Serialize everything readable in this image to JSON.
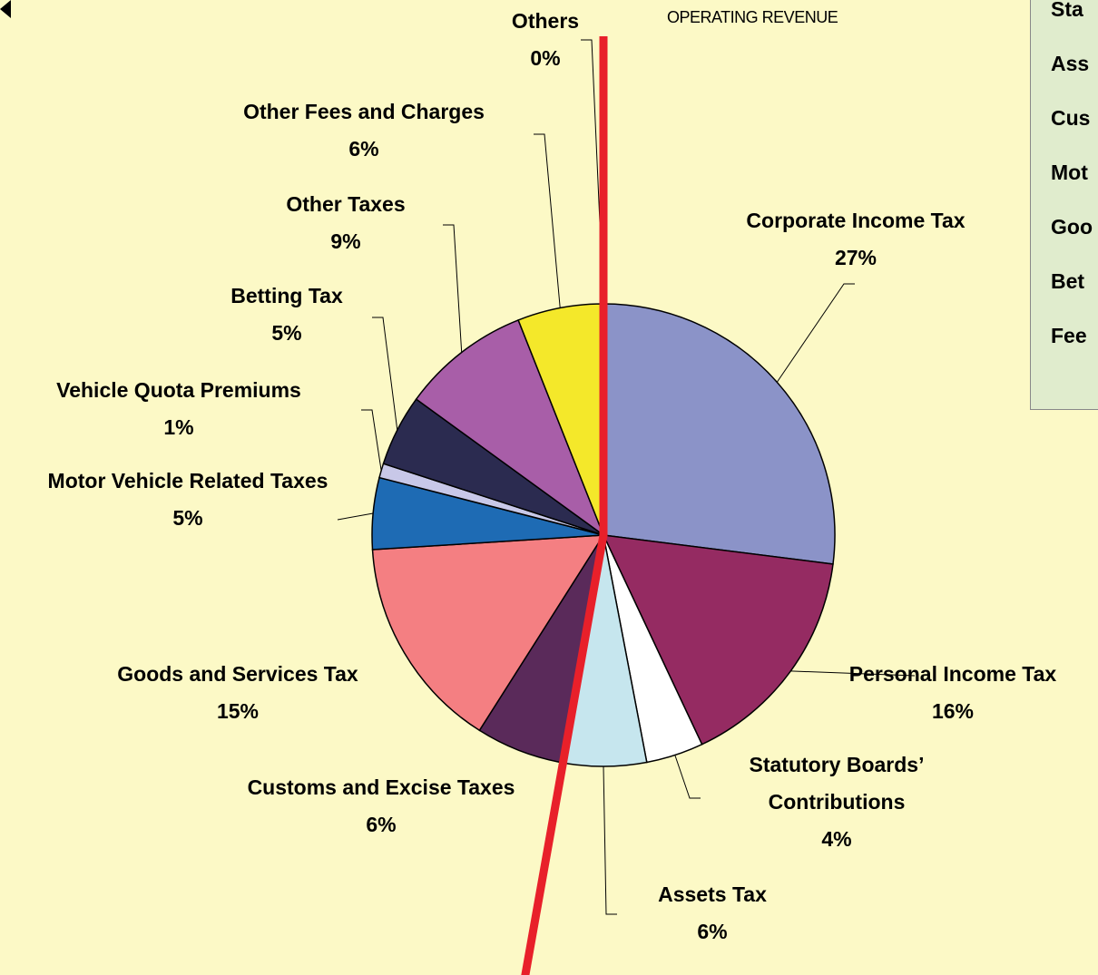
{
  "chart_data": {
    "type": "pie",
    "title": "OPERATING REVENUE",
    "categories": [
      "Corporate Income Tax",
      "Personal Income Tax",
      "Statutory Boards’ Contributions",
      "Assets Tax",
      "Customs and Excise Taxes",
      "Goods and Services Tax",
      "Motor Vehicle Related Taxes",
      "Vehicle Quota Premiums",
      "Betting Tax",
      "Other Taxes",
      "Other Fees and Charges",
      "Others"
    ],
    "values": [
      27,
      16,
      4,
      6,
      6,
      15,
      5,
      1,
      5,
      9,
      6,
      0
    ],
    "value_labels": [
      "27%",
      "16%",
      "4%",
      "6%",
      "6%",
      "15%",
      "5%",
      "1%",
      "5%",
      "9%",
      "6%",
      "0%"
    ],
    "colors": [
      "#8b93c8",
      "#952b62",
      "#ffffff",
      "#c6e6ee",
      "#5a2a5a",
      "#f47f82",
      "#1e6bb4",
      "#c8c8e8",
      "#2b2b50",
      "#a85ea8",
      "#f4e82a",
      "#f4e82a"
    ],
    "side_panel": [
      "Sta",
      "Ass",
      "Cus",
      "Mot",
      "Goo",
      "Bet",
      "Fee"
    ]
  }
}
